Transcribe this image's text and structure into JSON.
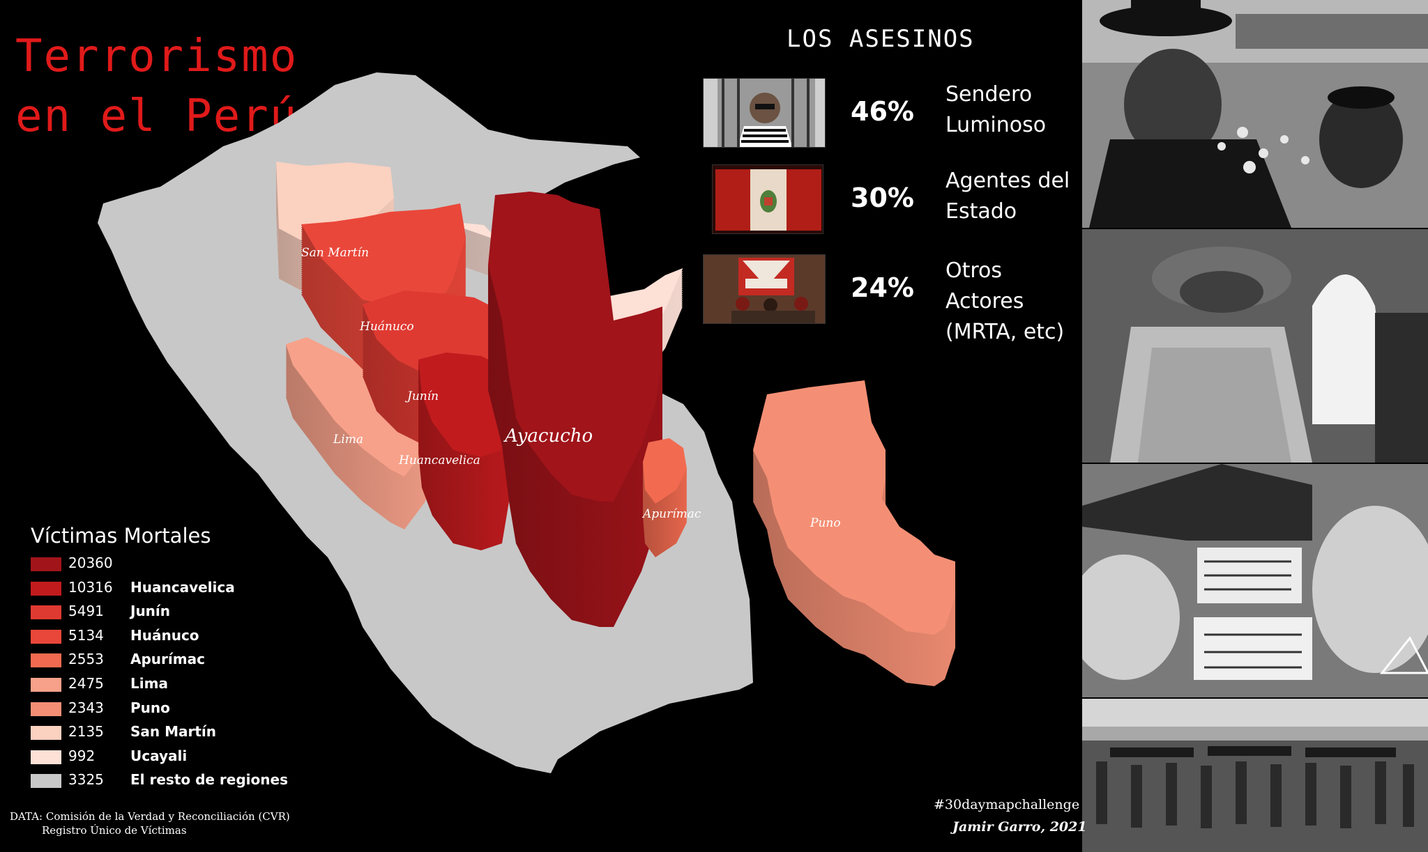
{
  "title": {
    "line1": "Terrorismo",
    "line2": "en el Perú"
  },
  "killers": {
    "title": "LOS ASESINOS",
    "items": [
      {
        "percent": "46%",
        "name_line1": "Sendero",
        "name_line2": "Luminoso"
      },
      {
        "percent": "30%",
        "name_line1": "Agentes del",
        "name_line2": "Estado"
      },
      {
        "percent": "24%",
        "name_line1": "Otros Actores",
        "name_line2": "(MRTA, etc)"
      }
    ]
  },
  "map": {
    "regions": [
      {
        "id": "san-martin",
        "label": "San Martín",
        "victims": 2135,
        "color": "#fbd1c0"
      },
      {
        "id": "huanuco",
        "label": "Huánuco",
        "victims": 5134,
        "color": "#e9473a"
      },
      {
        "id": "ucayali",
        "label": "",
        "victims": 992,
        "color": "#fde0d6"
      },
      {
        "id": "junin",
        "label": "Junín",
        "victims": 5491,
        "color": "#df3a32"
      },
      {
        "id": "lima",
        "label": "Lima",
        "victims": 2475,
        "color": "#f7a18a"
      },
      {
        "id": "huancavelica",
        "label": "Huancavelica",
        "victims": 10316,
        "color": "#c11b1e"
      },
      {
        "id": "ayacucho",
        "label": "Ayacucho",
        "victims": 20360,
        "color": "#a0141a"
      },
      {
        "id": "apurimac",
        "label": "Apurímac",
        "victims": 2553,
        "color": "#f26b50"
      },
      {
        "id": "puno",
        "label": "Puno",
        "victims": 2343,
        "color": "#f48f75"
      },
      {
        "id": "resto",
        "label": "",
        "victims": 3325,
        "color": "#c8c8c8"
      }
    ]
  },
  "legend": {
    "title": "Víctimas Mortales",
    "items": [
      {
        "value": "20360",
        "label": "",
        "color": "#a0141a"
      },
      {
        "value": "10316",
        "label": "Huancavelica",
        "color": "#c11b1e"
      },
      {
        "value": "5491",
        "label": "Junín",
        "color": "#df3a32"
      },
      {
        "value": "5134",
        "label": "Huánuco",
        "color": "#e9473a"
      },
      {
        "value": "2553",
        "label": "Apurímac",
        "color": "#f26b50"
      },
      {
        "value": "2475",
        "label": "Lima",
        "color": "#f7a18a"
      },
      {
        "value": "2343",
        "label": "Puno",
        "color": "#f48f75"
      },
      {
        "value": "2135",
        "label": "San Martín",
        "color": "#fbd1c0"
      },
      {
        "value": "992",
        "label": "Ucayali",
        "color": "#fde0d6"
      },
      {
        "value": "3325",
        "label": "El resto de regiones",
        "color": "#c8c8c8"
      }
    ]
  },
  "source": {
    "line1": "DATA: Comisión de la Verdad y Reconciliación (CVR)",
    "line2": "Registro Único de Víctimas"
  },
  "hashtag": "#30daymapchallenge",
  "author": "Jamir Garro, 2021"
}
